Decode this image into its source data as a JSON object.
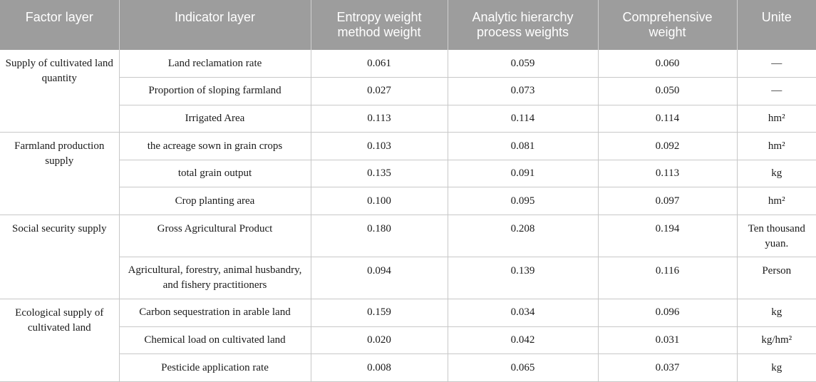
{
  "headers": [
    "Factor layer",
    "Indicator layer",
    "Entropy weight method weight",
    "Analytic hierarchy process weights",
    "Comprehensive weight",
    "Unite"
  ],
  "groups": [
    {
      "factor": "Supply of cultivated land quantity",
      "rows": [
        {
          "indicator": "Land reclamation rate",
          "entropy": "0.061",
          "ahp": "0.059",
          "comprehensive": "0.060",
          "unit": "—"
        },
        {
          "indicator": "Proportion of sloping farmland",
          "entropy": "0.027",
          "ahp": "0.073",
          "comprehensive": "0.050",
          "unit": "—"
        },
        {
          "indicator": "Irrigated Area",
          "entropy": "0.113",
          "ahp": "0.114",
          "comprehensive": "0.114",
          "unit": "hm²"
        }
      ]
    },
    {
      "factor": "Farmland production supply",
      "rows": [
        {
          "indicator": "the acreage sown in grain crops",
          "entropy": "0.103",
          "ahp": "0.081",
          "comprehensive": "0.092",
          "unit": "hm²"
        },
        {
          "indicator": "total grain output",
          "entropy": "0.135",
          "ahp": "0.091",
          "comprehensive": "0.113",
          "unit": "kg"
        },
        {
          "indicator": "Crop planting area",
          "entropy": "0.100",
          "ahp": "0.095",
          "comprehensive": "0.097",
          "unit": "hm²"
        }
      ]
    },
    {
      "factor": "Social security supply",
      "rows": [
        {
          "indicator": "Gross Agricultural Product",
          "entropy": "0.180",
          "ahp": "0.208",
          "comprehensive": "0.194",
          "unit": "Ten thousand yuan."
        },
        {
          "indicator": "Agricultural, forestry, animal husbandry, and fishery practitioners",
          "entropy": "0.094",
          "ahp": "0.139",
          "comprehensive": "0.116",
          "unit": "Person"
        }
      ]
    },
    {
      "factor": "Ecological supply of cultivated land",
      "rows": [
        {
          "indicator": "Carbon sequestration in arable land",
          "entropy": "0.159",
          "ahp": "0.034",
          "comprehensive": "0.096",
          "unit": "kg"
        },
        {
          "indicator": "Chemical load on cultivated land",
          "entropy": "0.020",
          "ahp": "0.042",
          "comprehensive": "0.031",
          "unit": "kg/hm²"
        },
        {
          "indicator": "Pesticide application rate",
          "entropy": "0.008",
          "ahp": "0.065",
          "comprehensive": "0.037",
          "unit": "kg"
        }
      ]
    }
  ]
}
